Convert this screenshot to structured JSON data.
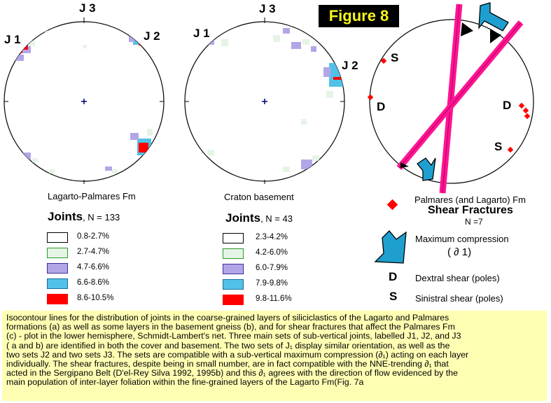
{
  "figure_title": "Figure 8",
  "nets": [
    {
      "id": "lagarto",
      "caption": "Lagarto-Palmares Fm",
      "labels": {
        "j1": "J 1",
        "j2": "J 2",
        "j3": "J 3"
      }
    },
    {
      "id": "craton",
      "caption": "Craton basement",
      "labels": {
        "j1": "J 1",
        "j2": "J 2",
        "j3": "J 3"
      }
    }
  ],
  "legend_left": {
    "title": "Joints",
    "n": ", N = 133",
    "classes": [
      {
        "range": "0.8-2.7%",
        "color": "#ffffff"
      },
      {
        "range": "2.7-4.7%",
        "color": "#e6f4e6"
      },
      {
        "range": "4.7-6.6%",
        "color": "#b3a6e8"
      },
      {
        "range": "6.6-8.6%",
        "color": "#52c1e8"
      },
      {
        "range": "8.6-10.5%",
        "color": "#ff0000"
      }
    ]
  },
  "legend_middle": {
    "title": "Joints",
    "n": ", N = 43",
    "classes": [
      {
        "range": "2.3-4.2%",
        "color": "#ffffff"
      },
      {
        "range": "4.2-6.0%",
        "color": "#e6f4e6"
      },
      {
        "range": "6.0-7.9%",
        "color": "#b3a6e8"
      },
      {
        "range": "7.9-9.8%",
        "color": "#52c1e8"
      },
      {
        "range": "9.8-11.6%",
        "color": "#ff0000"
      }
    ]
  },
  "shear_net": {
    "labels": {
      "s_top": "S",
      "d_left": "D",
      "d_right": "D",
      "s_bottom": "S"
    }
  },
  "legend_right": {
    "palmares": "Palmares (and Lagarto) Fm",
    "shear_title": "Shear Fractures",
    "shear_n": "N =7",
    "max_comp": "Maximum compression",
    "sigma": "( ∂ 1)",
    "d_key": "D",
    "d_desc": "Dextral shear (poles)",
    "s_key": "S",
    "s_desc": "Sinistral shear (poles)"
  },
  "colors": {
    "accent_pink": "#ff1493",
    "arrow_blue": "#1e9fd0",
    "title_bg": "#000000",
    "title_fg": "#f7f51a",
    "caption_bg": "#ffffb3"
  },
  "caption_text": {
    "l1": "Isocontour lines for the distribution of joints in the coarse-grained layers of siliciclastics of  the Lagarto and Palmares",
    "l2": "formations (a) as well as some layers in the basement gneiss (b), and for shear fractures that affect  the Palmares Fm",
    "l3": "(c) - plot in the lower hemisphere, Schmidt-Lambert's net. Three main sets of sub-vertical  joints, labelled J1, J2, and J3",
    "l4": "( a and b) are identified in both the cover and basement. The two sets of J₁ display similar orientation, as well as the",
    "l5": "two sets J2 and two sets J3. The sets are compatible with a sub-vertical maximum compression (∂₁) acting on each layer",
    "l6": "individually. The shear fractures, despite being in small number,  are in fact  compatible with the NNE-trending ∂₁ that",
    "l7": "acted in the Sergipano Belt (D'el-Rey Silva 1992, 1995b) and this ∂₁ agrees with the direction of flow evidenced by  the",
    "l8": "main population of inter-layer foliation within the fine-grained layers of the Lagarto Fm(Fig. 7a"
  }
}
